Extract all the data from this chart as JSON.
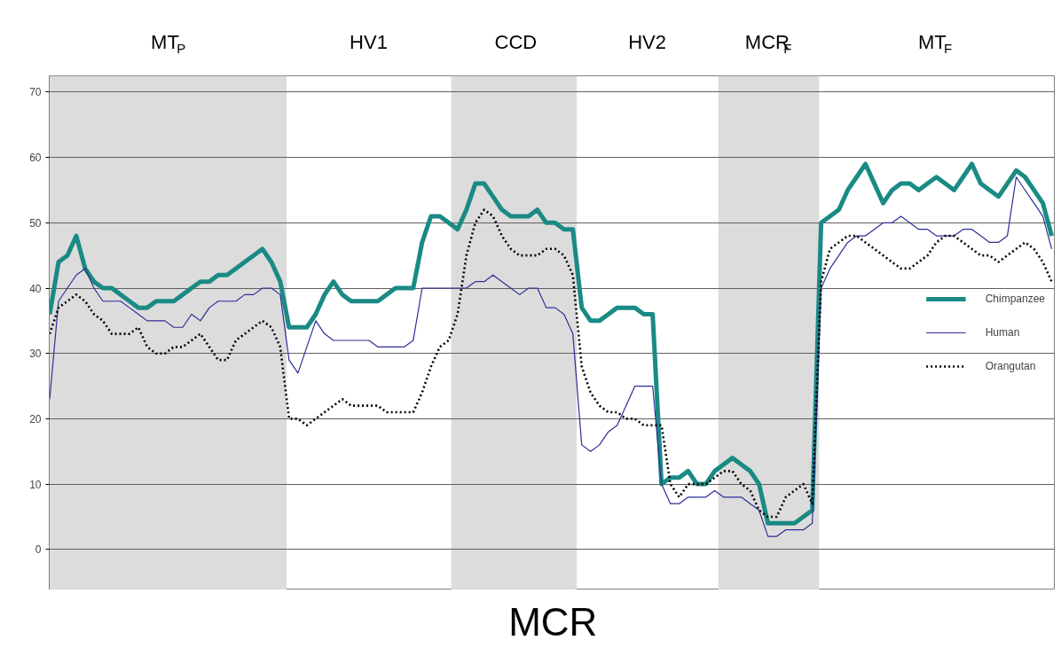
{
  "chart_data": {
    "type": "line",
    "categories": [
      null,
      null,
      null,
      null,
      null,
      null,
      null,
      null,
      null,
      null,
      null,
      null,
      null,
      null,
      null,
      null,
      null,
      null,
      null,
      null,
      null,
      null,
      null,
      null,
      null,
      null,
      null,
      null,
      null,
      null,
      null,
      null,
      null,
      null,
      null,
      null,
      null,
      null,
      null,
      null,
      null,
      null,
      null,
      null,
      null,
      null,
      null,
      null,
      null,
      null,
      null,
      null,
      null,
      null,
      null,
      null,
      null,
      null,
      null,
      null,
      null,
      null,
      null,
      null,
      null,
      null,
      null,
      null,
      null,
      null,
      null,
      null,
      null,
      null,
      null,
      null,
      null,
      null,
      null,
      null,
      null,
      null,
      null,
      null,
      null,
      null,
      null,
      null,
      null,
      null,
      null,
      null,
      null,
      null,
      null,
      null,
      null,
      null,
      null,
      null,
      null,
      null,
      null,
      null,
      null,
      null,
      null,
      null,
      null,
      null,
      null,
      null,
      null,
      null
    ],
    "ylim": [
      -6.2,
      72.5
    ],
    "yticks": [
      0,
      10,
      20,
      30,
      40,
      50,
      60,
      70
    ],
    "tick_labels": "y",
    "grid": "y",
    "legend": "right",
    "series": [
      {
        "name": "Chimpanzee",
        "color": "#1a8a84",
        "line_style": "solid",
        "values": [
          36,
          44,
          45,
          48,
          43,
          41,
          40,
          40,
          39,
          38,
          37,
          37,
          38,
          38,
          38,
          39,
          40,
          41,
          41,
          42,
          42,
          43,
          44,
          45,
          46,
          44,
          41,
          34,
          34,
          34,
          36,
          39,
          41,
          39,
          38,
          38,
          38,
          38,
          39,
          40,
          40,
          40,
          47,
          51,
          51,
          50,
          49,
          52,
          56,
          56,
          54,
          52,
          51,
          51,
          51,
          52,
          50,
          50,
          49,
          49,
          37,
          35,
          35,
          36,
          37,
          37,
          37,
          36,
          36,
          10,
          11,
          11,
          12,
          10,
          10,
          12,
          13,
          14,
          13,
          12,
          10,
          4,
          4,
          4,
          4,
          5,
          6,
          50,
          51,
          52,
          55,
          57,
          59,
          56,
          53,
          55,
          56,
          56,
          55,
          56,
          57,
          56,
          55,
          57,
          59,
          56,
          55,
          54,
          56,
          58,
          57,
          55,
          53,
          48
        ]
      },
      {
        "name": "Human",
        "color": "#2e2e96",
        "line_style": "solid",
        "values": [
          23,
          38,
          40,
          42,
          43,
          40,
          38,
          38,
          38,
          37,
          36,
          35,
          35,
          35,
          34,
          34,
          36,
          35,
          37,
          38,
          38,
          38,
          39,
          39,
          40,
          40,
          39,
          29,
          27,
          31,
          35,
          33,
          32,
          32,
          32,
          32,
          32,
          31,
          31,
          31,
          31,
          32,
          40,
          40,
          40,
          40,
          40,
          40,
          41,
          41,
          42,
          41,
          40,
          39,
          40,
          40,
          37,
          37,
          36,
          33,
          16,
          15,
          16,
          18,
          19,
          22,
          25,
          25,
          25,
          10,
          7,
          7,
          8,
          8,
          8,
          9,
          8,
          8,
          8,
          7,
          6,
          2,
          2,
          3,
          3,
          3,
          4,
          40,
          43,
          45,
          47,
          48,
          48,
          49,
          50,
          50,
          51,
          50,
          49,
          49,
          48,
          48,
          48,
          49,
          49,
          48,
          47,
          47,
          48,
          57,
          55,
          53,
          51,
          46
        ]
      },
      {
        "name": "Orangutan",
        "color": "#000000",
        "line_style": "dotted",
        "values": [
          33,
          37,
          38,
          39,
          38,
          36,
          35,
          33,
          33,
          33,
          34,
          31,
          30,
          30,
          31,
          31,
          32,
          33,
          31,
          29,
          29,
          32,
          33,
          34,
          35,
          34,
          31,
          20,
          20,
          19,
          20,
          21,
          22,
          23,
          22,
          22,
          22,
          22,
          21,
          21,
          21,
          21,
          24,
          28,
          31,
          32,
          36,
          45,
          50,
          52,
          51,
          48,
          46,
          45,
          45,
          45,
          46,
          46,
          45,
          42,
          28,
          24,
          22,
          21,
          21,
          20,
          20,
          19,
          19,
          19,
          10,
          8,
          10,
          10,
          10,
          11,
          12,
          12,
          10,
          9,
          6,
          5,
          5,
          8,
          9,
          10,
          7,
          41,
          46,
          47,
          48,
          48,
          47,
          46,
          45,
          44,
          43,
          43,
          44,
          45,
          47,
          48,
          48,
          47,
          46,
          45,
          45,
          44,
          45,
          46,
          47,
          46,
          44,
          41
        ]
      }
    ],
    "annotations": [
      "MT$_{P}$",
      "HV1",
      "CCD",
      "HV2",
      "MCR$_{F}$",
      "MT$_{F}$",
      "MCR"
    ]
  }
}
